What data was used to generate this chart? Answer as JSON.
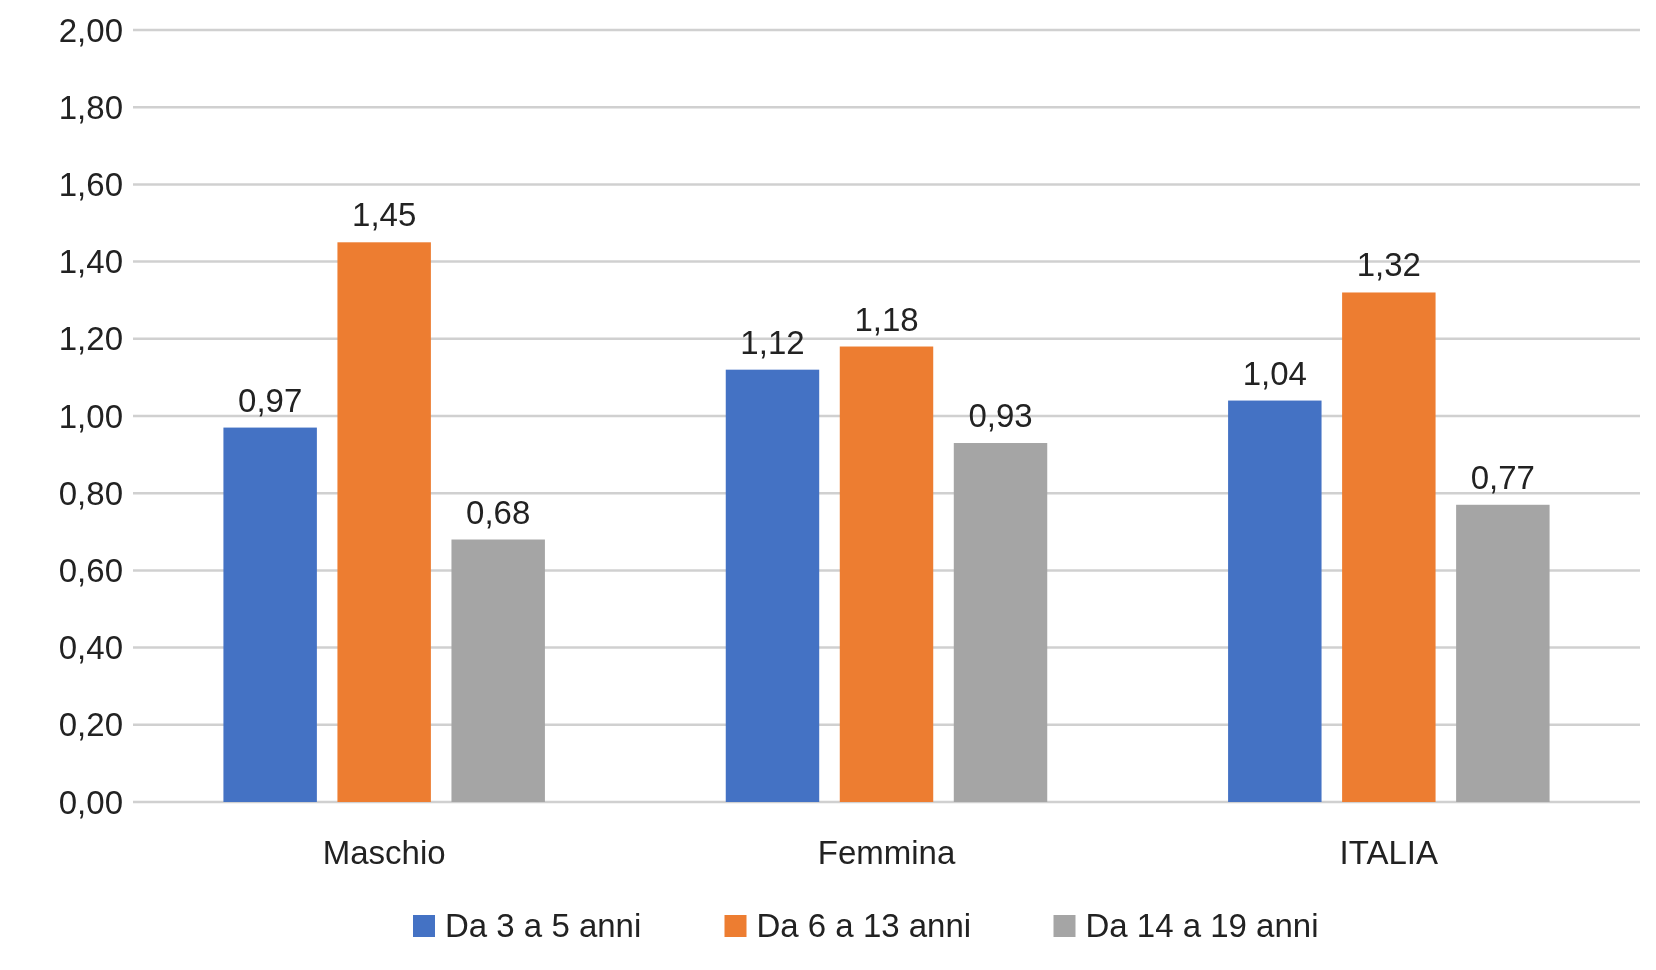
{
  "chart_data": {
    "type": "bar",
    "categories": [
      "Maschio",
      "Femmina",
      "ITALIA"
    ],
    "series": [
      {
        "name": "Da 3 a 5 anni",
        "color": "#4472c4",
        "values": [
          0.97,
          1.12,
          1.04
        ],
        "value_labels": [
          "0,97",
          "1,12",
          "1,04"
        ]
      },
      {
        "name": "Da 6 a 13 anni",
        "color": "#ed7d31",
        "values": [
          1.45,
          1.18,
          1.32
        ],
        "value_labels": [
          "1,45",
          "1,18",
          "1,32"
        ]
      },
      {
        "name": "Da 14 a 19 anni",
        "color": "#a5a5a5",
        "values": [
          0.68,
          0.93,
          0.77
        ],
        "value_labels": [
          "0,68",
          "0,93",
          "0,77"
        ]
      }
    ],
    "ylim": [
      0,
      2
    ],
    "yticks": [
      {
        "value": 0,
        "label": "0,00"
      },
      {
        "value": 0.2,
        "label": "0,20"
      },
      {
        "value": 0.4,
        "label": "0,40"
      },
      {
        "value": 0.6,
        "label": "0,60"
      },
      {
        "value": 0.8,
        "label": "0,80"
      },
      {
        "value": 1,
        "label": "1,00"
      },
      {
        "value": 1.2,
        "label": "1,20"
      },
      {
        "value": 1.4,
        "label": "1,40"
      },
      {
        "value": 1.6,
        "label": "1,60"
      },
      {
        "value": 1.8,
        "label": "1,80"
      },
      {
        "value": 2,
        "label": "2,00"
      }
    ],
    "grid": "y",
    "legend": "bottom"
  }
}
